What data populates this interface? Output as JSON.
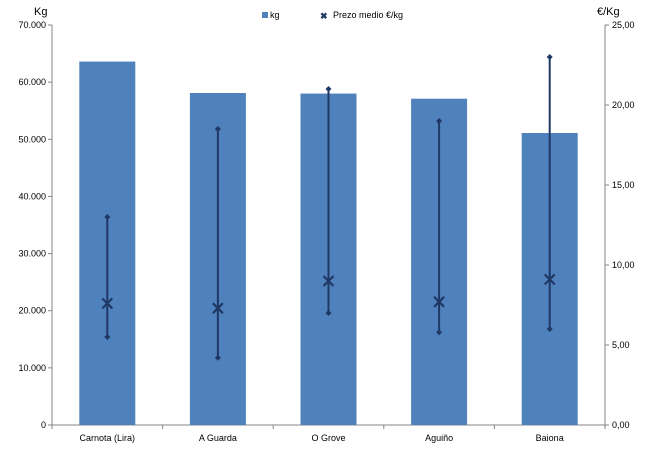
{
  "chart_data": {
    "type": "bar",
    "categories": [
      "Carnota (Lira)",
      "A Guarda",
      "O Grove",
      "Aguiño",
      "Baiona"
    ],
    "series": [
      {
        "name": "kg",
        "type": "bar",
        "axis": "left",
        "color": "#4F81BD",
        "values": [
          63600,
          58100,
          58000,
          57100,
          51100
        ]
      },
      {
        "name": "Prezo medio €/kg",
        "type": "marker",
        "axis": "right",
        "color": "#1F3864",
        "values": [
          7.6,
          7.3,
          9.0,
          7.7,
          9.1
        ],
        "max": [
          13.0,
          18.5,
          21.0,
          19.0,
          23.0
        ],
        "min": [
          5.5,
          4.2,
          7.0,
          5.8,
          6.0
        ]
      }
    ],
    "y_left": {
      "label": "Kg",
      "min": 0,
      "max": 70000,
      "step": 10000,
      "tick_labels": [
        "0",
        "10.000",
        "20.000",
        "30.000",
        "40.000",
        "50.000",
        "60.000",
        "70.000"
      ]
    },
    "y_right": {
      "label": "€/Kg",
      "min": 0,
      "max": 25,
      "step": 5,
      "tick_labels": [
        "0,00",
        "5,00",
        "10,00",
        "15,00",
        "20,00",
        "25,00"
      ]
    },
    "legend_position": "top-center",
    "grid": false
  }
}
